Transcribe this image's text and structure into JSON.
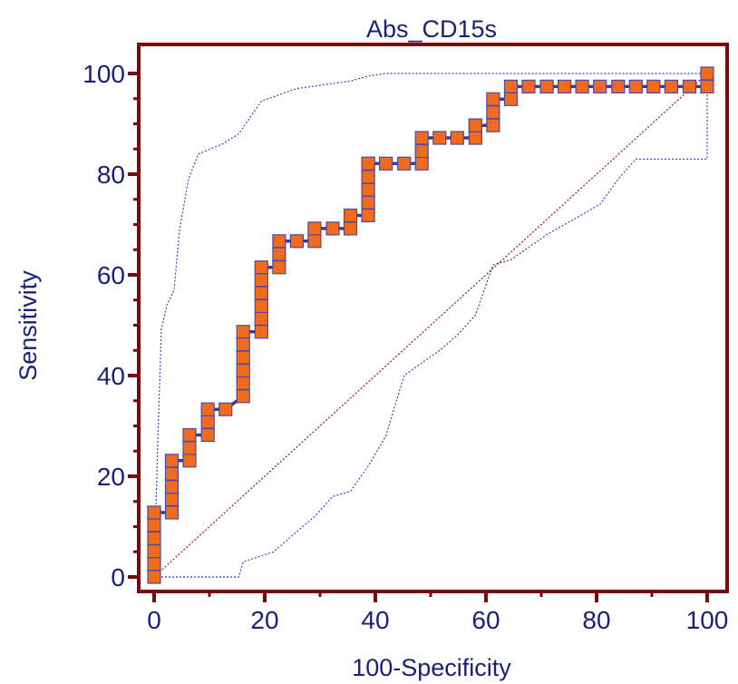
{
  "chart_data": {
    "type": "line",
    "title": "Abs_CD15s",
    "xlabel": "100-Specificity",
    "ylabel": "Sensitivity",
    "xlim": [
      0,
      100
    ],
    "ylim": [
      0,
      100
    ],
    "x_ticks": [
      "0",
      "20",
      "40",
      "60",
      "80",
      "100"
    ],
    "y_ticks": [
      "0",
      "20",
      "40",
      "60",
      "80",
      "100"
    ],
    "grid": false,
    "legend": "none",
    "colors": {
      "frame": "#7a0a0a",
      "roc_line": "#3b3b8f",
      "roc_marker_fill": "#f26b1d",
      "roc_marker_edge": "#4a4aa8",
      "ci_line": "#3344cc",
      "diagonal": "#a01010",
      "text": "#1a1f78"
    },
    "series": [
      {
        "role": "roc",
        "x": [
          0,
          0,
          0,
          0,
          0,
          0,
          0,
          3.2,
          3.2,
          3.2,
          3.2,
          3.2,
          6.4,
          6.4,
          6.4,
          9.7,
          9.7,
          9.7,
          12.9,
          16.1,
          16.1,
          16.1,
          16.1,
          16.1,
          16.1,
          19.4,
          19.4,
          19.4,
          19.4,
          19.4,
          19.4,
          22.6,
          22.6,
          22.6,
          25.8,
          29,
          29,
          32.3,
          35.5,
          35.5,
          38.7,
          38.7,
          38.7,
          38.7,
          38.7,
          38.7,
          41.9,
          45.2,
          48.4,
          48.4,
          48.4,
          51.6,
          54.8,
          58.1,
          58.1,
          58.1,
          61.3,
          61.3,
          61.3,
          64.5,
          64.5,
          67.7,
          71,
          74.2,
          77.4,
          80.6,
          83.9,
          87.1,
          90.3,
          93.5,
          96.8,
          100,
          100
        ],
        "y": [
          0,
          2.6,
          5.1,
          7.7,
          10.3,
          12.8,
          12.8,
          12.8,
          15.4,
          17.9,
          20.5,
          23.1,
          23.1,
          25.6,
          28.2,
          28.2,
          30.8,
          33.3,
          33.3,
          35.9,
          38.5,
          41,
          43.6,
          46.2,
          48.7,
          48.7,
          51.3,
          53.8,
          56.4,
          59,
          61.5,
          61.5,
          64.1,
          66.7,
          66.7,
          66.7,
          69.2,
          69.2,
          69.2,
          71.8,
          71.8,
          74.4,
          76.9,
          79.5,
          82.1,
          82.1,
          82.1,
          82.1,
          82.1,
          84.6,
          87.2,
          87.2,
          87.2,
          87.2,
          89.7,
          89.7,
          89.7,
          92.3,
          94.9,
          94.9,
          97.4,
          97.4,
          97.4,
          97.4,
          97.4,
          97.4,
          97.4,
          97.4,
          97.4,
          97.4,
          97.4,
          97.4,
          100
        ]
      },
      {
        "role": "ci-upper",
        "x": [
          0,
          0.6,
          1.3,
          2.3,
          3.6,
          4.6,
          6.2,
          8,
          12.4,
          15.3,
          19.4,
          25.8,
          35.5,
          38.7,
          41.9,
          48.4,
          100
        ],
        "y": [
          0,
          25,
          49,
          54,
          57,
          69,
          79,
          84,
          86,
          88,
          94.5,
          97,
          98.5,
          99.5,
          100,
          100,
          100
        ]
      },
      {
        "role": "ci-lower",
        "x": [
          0,
          15.3,
          16.1,
          21.6,
          25.8,
          29,
          32.3,
          35.5,
          38.7,
          41.9,
          45.2,
          51.6,
          54.8,
          58.1,
          61.3,
          64.5,
          71,
          80.6,
          83.9,
          87.1,
          100,
          100
        ],
        "y": [
          0,
          0,
          3,
          5,
          9,
          12,
          16,
          17,
          22,
          28,
          40,
          45,
          48,
          52,
          62,
          63,
          68,
          74,
          79,
          83,
          83,
          100
        ]
      },
      {
        "role": "reference",
        "x": [
          0,
          100
        ],
        "y": [
          0,
          100
        ]
      }
    ]
  }
}
